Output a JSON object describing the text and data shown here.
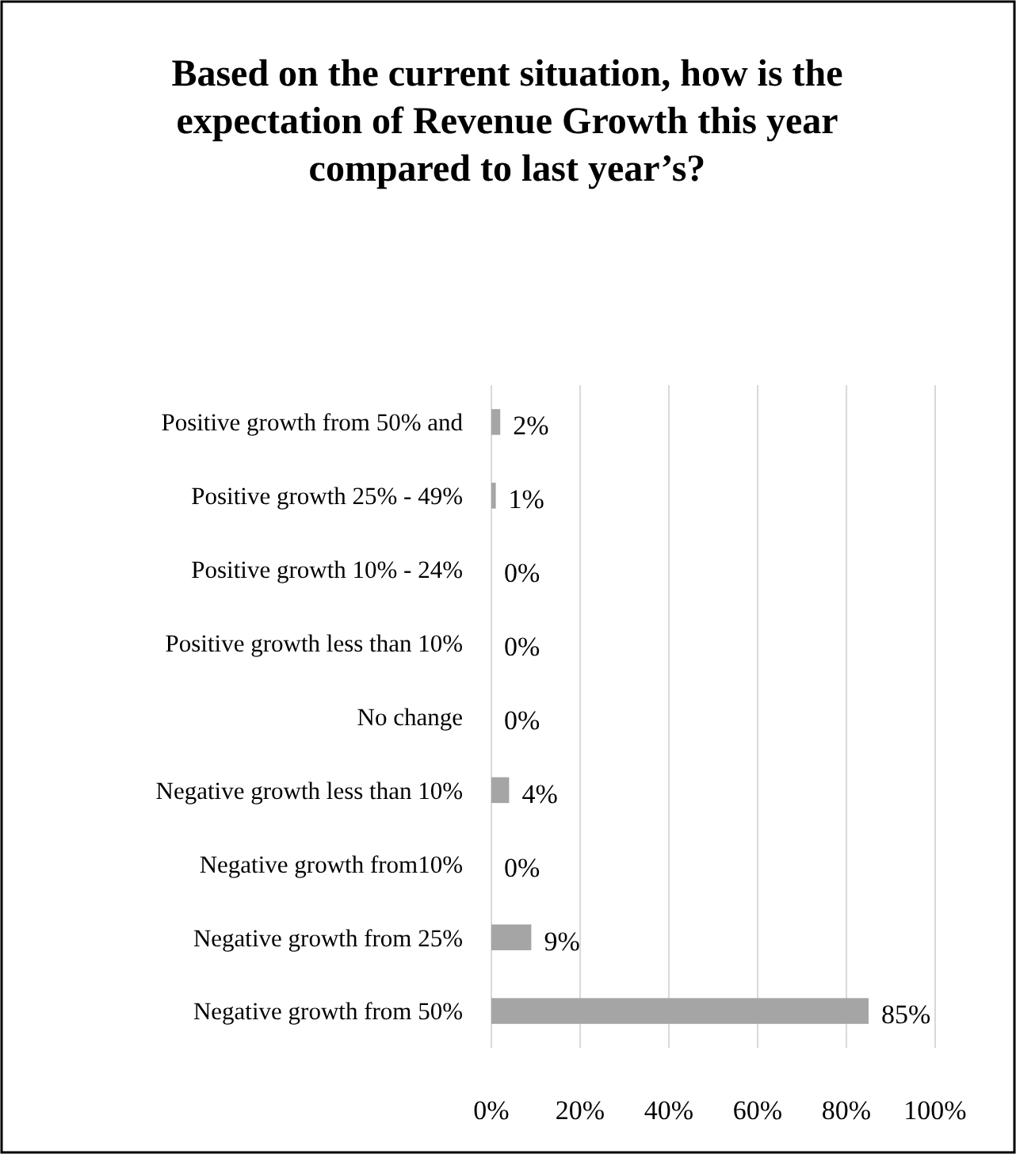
{
  "chart_data": {
    "type": "bar",
    "orientation": "horizontal",
    "title": "Based on the current situation, how is the expectation of Revenue Growth this year compared to last year’s?",
    "categories": [
      "Positive growth from 50% and",
      "Positive growth 25% - 49%",
      "Positive growth 10% - 24%",
      "Positive growth less than 10%",
      "No change",
      "Negative growth less than 10%",
      "Negative growth from10%",
      "Negative growth from 25%",
      "Negative growth from 50%"
    ],
    "values": [
      2,
      1,
      0,
      0,
      0,
      4,
      0,
      9,
      85
    ],
    "value_labels": [
      "2%",
      "1%",
      "0%",
      "0%",
      "0%",
      "4%",
      "0%",
      "9%",
      "85%"
    ],
    "color": "#a5a5a5",
    "xlim": [
      0,
      100
    ],
    "xticks": [
      {
        "value": 0,
        "label": "0%"
      },
      {
        "value": 20,
        "label": "20%"
      },
      {
        "value": 40,
        "label": "40%"
      },
      {
        "value": 60,
        "label": "60%"
      },
      {
        "value": 80,
        "label": "80%"
      },
      {
        "value": 100,
        "label": "100%"
      }
    ],
    "grid": "x"
  }
}
